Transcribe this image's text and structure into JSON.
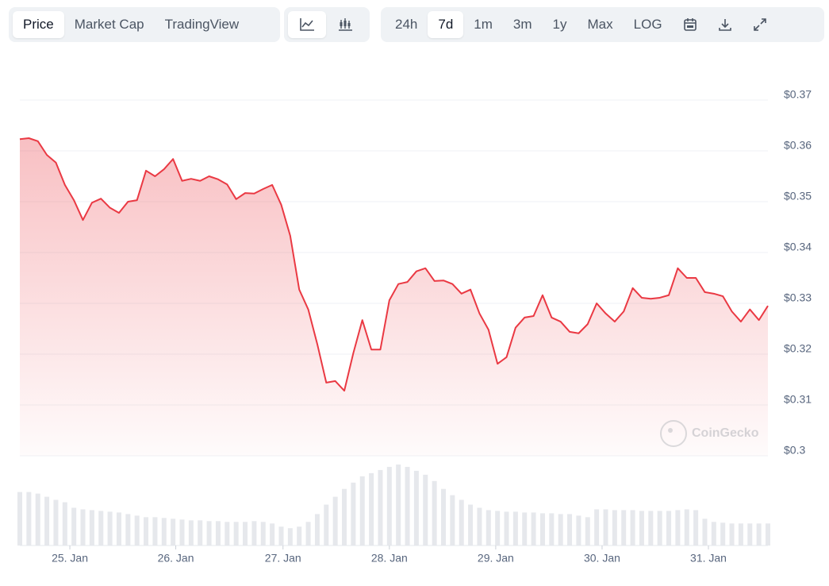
{
  "toolbar": {
    "view_tabs": [
      "Price",
      "Market Cap",
      "TradingView"
    ],
    "range_tabs": [
      "24h",
      "7d",
      "1m",
      "3m",
      "1y",
      "Max",
      "LOG"
    ]
  },
  "chart_data": {
    "type": "line",
    "watermark": "CoinGecko",
    "color": "#ea3943",
    "values": [
      0.3623,
      0.3625,
      0.3619,
      0.3592,
      0.3577,
      0.3533,
      0.3503,
      0.3464,
      0.3498,
      0.3506,
      0.3488,
      0.3478,
      0.35,
      0.3503,
      0.3561,
      0.355,
      0.3564,
      0.3584,
      0.3541,
      0.3545,
      0.3541,
      0.355,
      0.3544,
      0.3534,
      0.3505,
      0.3517,
      0.3516,
      0.3525,
      0.3533,
      0.3494,
      0.3433,
      0.3327,
      0.3288,
      0.322,
      0.3144,
      0.3147,
      0.3128,
      0.3202,
      0.3267,
      0.3209,
      0.3209,
      0.3306,
      0.3338,
      0.3342,
      0.3363,
      0.3369,
      0.3344,
      0.3345,
      0.3338,
      0.3319,
      0.3327,
      0.328,
      0.3248,
      0.3181,
      0.3194,
      0.3252,
      0.3272,
      0.3275,
      0.3316,
      0.3272,
      0.3264,
      0.3244,
      0.3241,
      0.3259,
      0.33,
      0.328,
      0.3264,
      0.3284,
      0.333,
      0.3311,
      0.3309,
      0.3311,
      0.3316,
      0.3369,
      0.335,
      0.335,
      0.3322,
      0.3319,
      0.3314,
      0.3284,
      0.3264,
      0.3288,
      0.3267,
      0.3295
    ],
    "volume": [
      68,
      68,
      66,
      62,
      58,
      55,
      48,
      46,
      45,
      44,
      43,
      42,
      40,
      38,
      36,
      36,
      35,
      34,
      33,
      32,
      32,
      31,
      31,
      30,
      30,
      30,
      31,
      30,
      28,
      24,
      22,
      24,
      30,
      40,
      52,
      62,
      72,
      80,
      88,
      92,
      96,
      100,
      103,
      100,
      95,
      90,
      82,
      72,
      64,
      58,
      52,
      48,
      45,
      44,
      43,
      43,
      42,
      42,
      41,
      41,
      40,
      40,
      38,
      36,
      46,
      46,
      45,
      45,
      45,
      44,
      44,
      44,
      44,
      45,
      46,
      45,
      34,
      30,
      29,
      28,
      28,
      28,
      28,
      28
    ],
    "volume_color": "#e6e8ec",
    "ylim": [
      0.3,
      0.37
    ],
    "yticks": [
      {
        "value": 0.3,
        "label": "$0.3"
      },
      {
        "value": 0.31,
        "label": "$0.31"
      },
      {
        "value": 0.32,
        "label": "$0.32"
      },
      {
        "value": 0.33,
        "label": "$0.33"
      },
      {
        "value": 0.34,
        "label": "$0.34"
      },
      {
        "value": 0.35,
        "label": "$0.35"
      },
      {
        "value": 0.36,
        "label": "$0.36"
      },
      {
        "value": 0.37,
        "label": "$0.37"
      }
    ],
    "xticks": [
      {
        "value": 5.55,
        "label": "25. Jan"
      },
      {
        "value": 17.3,
        "label": "26. Jan"
      },
      {
        "value": 29.2,
        "label": "27. Jan"
      },
      {
        "value": 41.0,
        "label": "28. Jan"
      },
      {
        "value": 52.8,
        "label": "29. Jan"
      },
      {
        "value": 64.6,
        "label": "30. Jan"
      },
      {
        "value": 76.4,
        "label": "31. Jan"
      }
    ],
    "grid": true
  }
}
